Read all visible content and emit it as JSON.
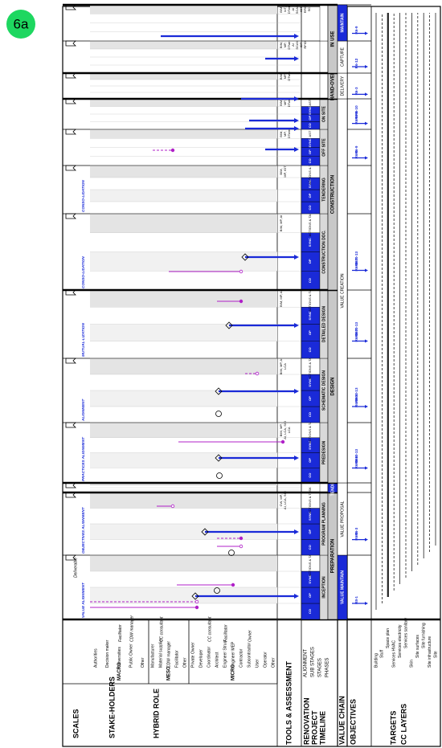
{
  "badge": "6a",
  "scales": {
    "title": "SCALES",
    "groups": [
      {
        "name": "MACRO",
        "stakeholders": [
          {
            "name": "Authorities"
          },
          {
            "name": "Decision maker"
          },
          {
            "name": "Universities",
            "hybrid_role": "Facilitator"
          },
          {
            "name": "Public Owner",
            "hybrid_role": "CDW manager"
          },
          {
            "name": "Other"
          }
        ]
      },
      {
        "name": "MESO",
        "stakeholders": [
          {
            "name": "Manufacturer"
          },
          {
            "name": "Material supplier",
            "hybrid_role": "CC consultant"
          },
          {
            "name": "CDW manager"
          },
          {
            "name": "Facilitator"
          },
          {
            "name": "Other"
          }
        ]
      },
      {
        "name": "MICRO",
        "stakeholders": [
          {
            "name": "Private Owner"
          },
          {
            "name": "Developer"
          },
          {
            "name": "Coordinator",
            "hybrid_role": "CC consultant"
          },
          {
            "name": "Architect"
          },
          {
            "name": "Engineer Struct.",
            "hybrid_role": "Facilitator"
          },
          {
            "name": "Engineer MEP"
          },
          {
            "name": "Contractor"
          },
          {
            "name": "Subcontractor",
            "hybrid_role": "Owner"
          },
          {
            "name": "User"
          },
          {
            "name": "Operator"
          },
          {
            "name": "Other"
          }
        ]
      }
    ]
  },
  "stakeholders_title": "STAKE-HOLDERS",
  "hybrid_role_title": "HYBRID ROLE",
  "deliverable": "Deliverable",
  "row_labels": {
    "tools": "TOOLS & ASSESSMENT",
    "timeline": [
      "RENOVATION",
      "PROJECT",
      "TIMELINE"
    ],
    "alignment": "ALIGNMENT",
    "sub_stages": "SUB STAGES",
    "stages": "STAGES",
    "phases": "PHASES",
    "value_chain": "VALUE CHAIN",
    "objectives": "OBJECTIVES",
    "targets": "TARGETS",
    "cc_layers": "CC LAYERS"
  },
  "phases": [
    {
      "name": "PREPARATION",
      "stages": [
        {
          "name": "INCEPTION",
          "milestone": "VALUE ALIGNMENT",
          "sub_stages": [
            "CO",
            "OP",
            "SYNC",
            "ACTIONS & TASK"
          ],
          "objectives": [
            "R8-1"
          ]
        },
        {
          "name": "PROGRAM PLANNING",
          "milestone": "OBJECTIVES ALIGNMENT",
          "sub_stages": [
            "CO",
            "OP",
            "SYNC",
            "ACTIONS & TASK"
          ],
          "tools": [
            "CW, MP,",
            "AI, LCA, SCI"
          ],
          "objectives": [
            "R6-2",
            "R6-3"
          ]
        }
      ]
    },
    {
      "name": "TENDER",
      "stages": [
        {}
      ]
    },
    {
      "name": "DESIGN",
      "stages": [
        {
          "name": "PREDESIGN",
          "milestone": "PRACTICES ALIGNMENT",
          "sub_stages": [
            "CO",
            "OP",
            "SYNC",
            "ACTIONS & TASK"
          ],
          "tools": [
            "BIM, MP,",
            "AI, LCA, SCI",
            "LCA"
          ],
          "objectives": [
            "R6-3",
            "R6-6",
            "R10-13"
          ]
        },
        {
          "name": "SCHEMATIC DESIGN",
          "milestone": "ALIGNMENT",
          "sub_stages": [
            "CO",
            "OP",
            "SYNC",
            "ACTIONS & TASK"
          ],
          "tools": [
            "BIM, MP, AI",
            "LCA"
          ],
          "objectives": [
            "R6-3",
            "R6-5",
            "R10-13"
          ]
        },
        {
          "name": "DETAILED DESIGN",
          "milestone": "MUTUAL-LIZATION",
          "sub_stages": [
            "CO",
            "OP",
            "SYNC",
            "ACTIONS & TASK"
          ],
          "tools": [
            "BIM, MP, AI"
          ],
          "objectives": [
            "R6-3",
            "R6-7",
            "R10-13"
          ]
        }
      ]
    },
    {
      "name": "CONSTRUCTION",
      "stages": [
        {
          "name": "CONSTRUCTION DOC.",
          "milestone": "CONSO-LIDATION",
          "sub_stages": [
            "CO",
            "OP",
            "SYNC",
            "ACTIONS & TASK"
          ],
          "tools": [
            "BIM, MP, AI"
          ],
          "objectives": [
            "R6-3",
            "R6-7",
            "R10-13"
          ]
        },
        {
          "name": "TENDERING",
          "milestone": "CONSO-LIDATION",
          "sub_stages": [
            "CO",
            "OP",
            "SYNC",
            "ACTIONS & TASK"
          ],
          "tools": [
            "BIM,",
            "MP, IOT"
          ]
        },
        {
          "name": "OFF SITE",
          "sub_stages": [
            "CO",
            "OP",
            "SYNC",
            "AST"
          ],
          "tools": [
            "BIM,",
            "MP,",
            "DTwin"
          ],
          "objectives": [
            "R6-3",
            "R6-9"
          ]
        },
        {
          "name": "ON SITE",
          "sub_stages": [
            "CO",
            "OP",
            "SYNC",
            "AST"
          ],
          "tools": [
            "BIM,",
            "MP,",
            "DTwin"
          ],
          "objectives": [
            "R6-6",
            "R6-9",
            "R6-10"
          ]
        }
      ]
    },
    {
      "name": "HAND-OVER",
      "stages": [
        {
          "tools": [
            "BIM,",
            "MP,",
            "DTwin"
          ],
          "objectives": [
            "R6-3"
          ]
        }
      ]
    },
    {
      "name": "IN USE",
      "stages": [
        {
          "tools": [
            "BIM,",
            "MP,",
            "DTwin",
            "AI",
            "SCAN",
            "IOT",
            "RFID"
          ],
          "objectives": [
            "R6-12"
          ]
        },
        {
          "tools": [
            "BIM,",
            "IoT,",
            "DTwin",
            "AI",
            "SCAN",
            "IOT",
            "RFID",
            "SC"
          ],
          "objectives": [
            "R6-9"
          ]
        }
      ]
    }
  ],
  "value_chain": [
    "VALUE MAINTAIN",
    "VALUE PROPOSAL",
    "VALUE CREATION",
    "DELIVERY",
    "CAPTURE",
    "MAINTAIN"
  ],
  "layers": [
    "Building",
    "Stuff",
    "Space plan",
    "Services HVAC",
    "Services electricity",
    "Services sanitary",
    "Skin",
    "Site surfaces",
    "Site furnishing",
    "Site infrastructure",
    "Site"
  ]
}
